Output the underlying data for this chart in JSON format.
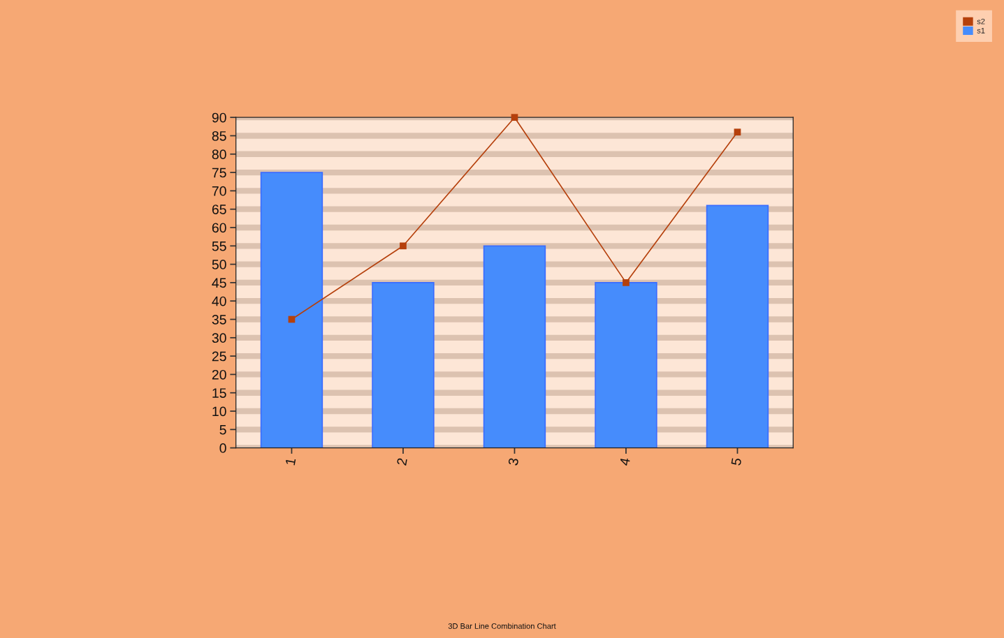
{
  "chart_data": {
    "type": "bar",
    "title": "3D Bar Line Combination Chart",
    "categories": [
      "1",
      "2",
      "3",
      "4",
      "5"
    ],
    "series": [
      {
        "name": "s2",
        "type": "line",
        "color": "#b5400c",
        "values": [
          35,
          55,
          90,
          45,
          86
        ]
      },
      {
        "name": "s1",
        "color": "#468cfc",
        "values": [
          75,
          45,
          55,
          45,
          66
        ]
      }
    ],
    "ylim": [
      0,
      90
    ],
    "yticks": [
      0,
      5,
      10,
      15,
      20,
      25,
      30,
      35,
      40,
      45,
      50,
      55,
      60,
      65,
      70,
      75,
      80,
      85,
      90
    ],
    "grid": "y",
    "legend": "top right",
    "marker": "square"
  }
}
